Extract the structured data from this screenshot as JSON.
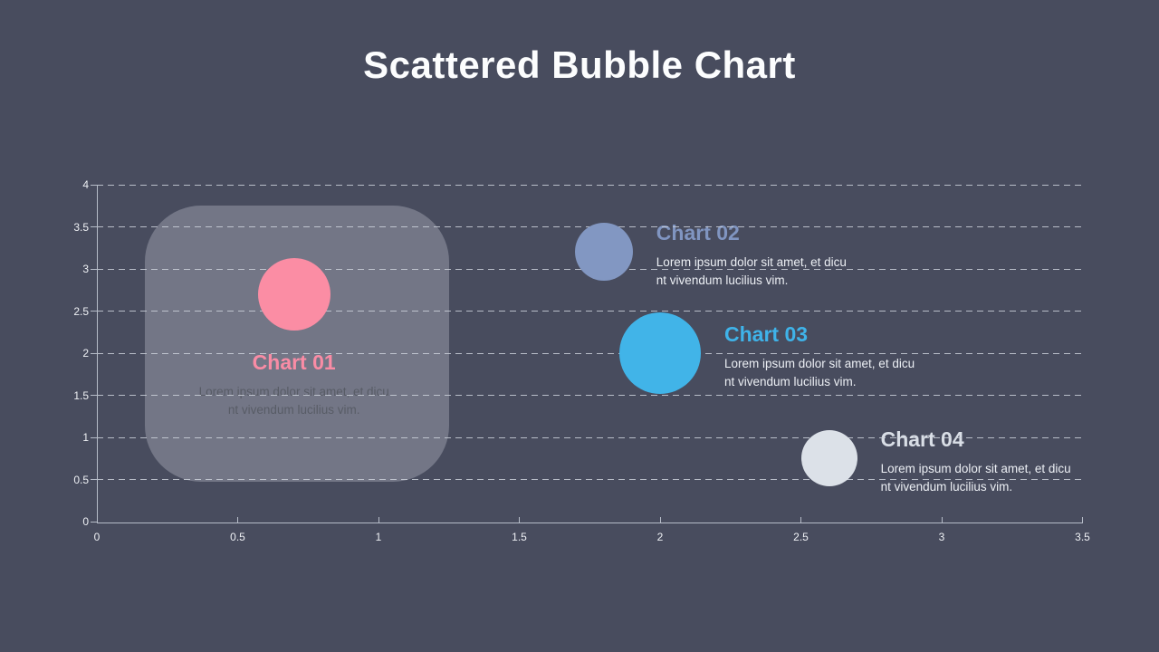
{
  "title": "Scattered Bubble Chart",
  "colors": {
    "background": "#484c5e",
    "gridline": "#ccd1da",
    "axis": "#b6bcc8",
    "tick_label": "#eef0f4",
    "title_text": "#fcfdfe",
    "highlight_box_fill": "rgba(226,231,240,0.28)"
  },
  "chart_data": {
    "type": "scatter",
    "subtype": "bubble",
    "title": "Scattered Bubble Chart",
    "xlabel": "",
    "ylabel": "",
    "xlim": [
      0,
      3.5
    ],
    "ylim": [
      0,
      4
    ],
    "x_tick_step": 0.5,
    "y_tick_step": 0.5,
    "x_tick_labels": [
      "0",
      "0.5",
      "1",
      "1.5",
      "2",
      "2.5",
      "3",
      "3.5"
    ],
    "y_tick_labels": [
      "0",
      "0.5",
      "1",
      "1.5",
      "2",
      "2.5",
      "3",
      "3.5",
      "4"
    ],
    "grid": "dashed horizontal gridlines",
    "legend": "none",
    "highlight_box": {
      "x0": 0.17,
      "y0": 0.47,
      "x1": 1.25,
      "y1": 3.75
    },
    "series": [
      {
        "name": "Chart 01",
        "x": 0.7,
        "y": 2.7,
        "radius_px": 40,
        "bubble_color": "#fb8da4",
        "label_color": "#f98ca5",
        "desc": "Lorem ipsum dolor sit amet, et dicu\nnt vivendum lucilius vim.",
        "desc_color": "#585c66",
        "label_layout": "below"
      },
      {
        "name": "Chart 02",
        "x": 1.8,
        "y": 3.2,
        "radius_px": 32,
        "bubble_color": "#8297c2",
        "label_color": "#8095c1",
        "desc": "Lorem ipsum dolor sit amet, et dicu\nnt vivendum lucilius vim.",
        "desc_color": "#eceff4",
        "label_layout": "right"
      },
      {
        "name": "Chart 03",
        "x": 2.0,
        "y": 2.0,
        "radius_px": 45,
        "bubble_color": "#41b4e8",
        "label_color": "#3fb3e9",
        "desc": "Lorem ipsum dolor sit amet, et dicu\nnt vivendum lucilius vim.",
        "desc_color": "#eceff4",
        "label_layout": "right"
      },
      {
        "name": "Chart 04",
        "x": 2.6,
        "y": 0.75,
        "radius_px": 31,
        "bubble_color": "#dce1e8",
        "label_color": "#d9dee6",
        "desc": "Lorem ipsum dolor sit amet, et dicu\nnt vivendum lucilius vim.",
        "desc_color": "#eceff4",
        "label_layout": "right"
      }
    ]
  }
}
